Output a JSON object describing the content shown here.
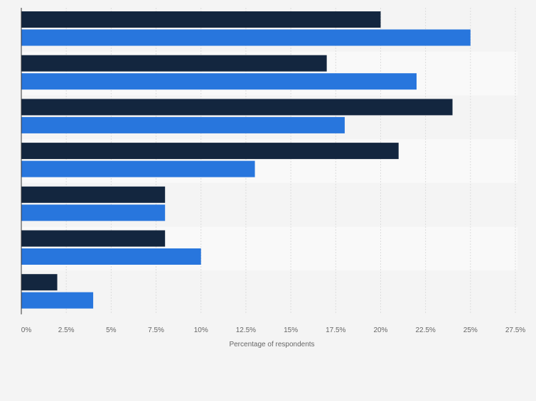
{
  "chart_data": {
    "type": "bar",
    "orientation": "horizontal",
    "categories": [
      "",
      "",
      "",
      "",
      "",
      "",
      ""
    ],
    "series": [
      {
        "values": [
          20,
          17,
          24,
          21,
          8,
          8,
          2
        ]
      },
      {
        "values": [
          25,
          22,
          18,
          13,
          8,
          10,
          4
        ]
      }
    ],
    "title": "",
    "xlabel": "Percentage of respondents",
    "ylabel": "",
    "xlim": [
      0,
      27.5
    ],
    "x_ticks": [
      "0%",
      "2.5%",
      "5%",
      "7.5%",
      "10%",
      "12.5%",
      "15%",
      "17.5%",
      "20%",
      "22.5%",
      "25%",
      "27.5%"
    ],
    "grid": true,
    "colors": {
      "series": [
        "#13263f",
        "#2876dd"
      ],
      "band_odd": "#f4f4f4",
      "band_even": "#f9f9f9",
      "grid": "#dcdcdc",
      "axis": "#333333",
      "tick_text": "#666666"
    }
  }
}
